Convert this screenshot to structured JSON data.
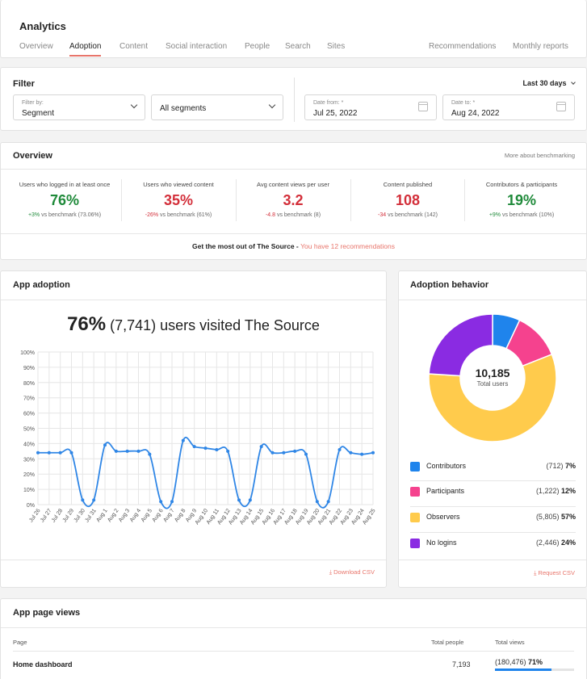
{
  "header": {
    "title": "Analytics",
    "tabs": [
      {
        "label": "Overview"
      },
      {
        "label": "Adoption"
      },
      {
        "label": "Content"
      },
      {
        "label": "Social interaction"
      },
      {
        "label": "People"
      },
      {
        "label": "Search"
      },
      {
        "label": "Sites"
      }
    ],
    "right_tabs": [
      {
        "label": "Recommendations"
      },
      {
        "label": "Monthly reports"
      }
    ]
  },
  "filter": {
    "title": "Filter",
    "range_label": "Last 30 days",
    "filter_by_label": "Filter by:",
    "filter_by_value": "Segment",
    "segments_value": "All segments",
    "date_from_label": "Date from: *",
    "date_from_value": "Jul 25, 2022",
    "date_to_label": "Date to: *",
    "date_to_value": "Aug 24, 2022"
  },
  "overview": {
    "title": "Overview",
    "benchmark_link": "More about benchmarking",
    "metrics": [
      {
        "label": "Users who logged in at least once",
        "value": "76%",
        "delta": "+3%",
        "bench": " vs benchmark (73.06%)",
        "trend": "pos"
      },
      {
        "label": "Users who viewed content",
        "value": "35%",
        "delta": "-26%",
        "bench": " vs benchmark (61%)",
        "trend": "neg"
      },
      {
        "label": "Avg content views per user",
        "value": "3.2",
        "delta": "-4.8",
        "bench": " vs benchmark (8)",
        "trend": "neg"
      },
      {
        "label": "Content published",
        "value": "108",
        "delta": "-34",
        "bench": " vs benchmark (142)",
        "trend": "neg"
      },
      {
        "label": "Contributors & participants",
        "value": "19%",
        "delta": "+9%",
        "bench": " vs benchmark (10%)",
        "trend": "pos"
      }
    ],
    "recommend_text": "Get the most out of The Source - ",
    "recommend_link": "You have 12 recommendations"
  },
  "app_adoption": {
    "title": "App adoption",
    "headline_pct": "76%",
    "headline_rest": " (7,741) users visited The Source",
    "download": "Download CSV"
  },
  "chart_data": {
    "type": "line",
    "x": [
      "Jul 26",
      "Jul 27",
      "Jul 28",
      "Jul 29",
      "Jul 30",
      "Jul 31",
      "Aug 1",
      "Aug 2",
      "Aug 3",
      "Aug 4",
      "Aug 5",
      "Aug 6",
      "Aug 7",
      "Aug 8",
      "Aug 9",
      "Aug 10",
      "Aug 11",
      "Aug 12",
      "Aug 13",
      "Aug 14",
      "Aug 15",
      "Aug 16",
      "Aug 17",
      "Aug 18",
      "Aug 19",
      "Aug 20",
      "Aug 21",
      "Aug 22",
      "Aug 23",
      "Aug 24",
      "Aug 25"
    ],
    "values": [
      34,
      34,
      34,
      34,
      3,
      3,
      39,
      35,
      35,
      35,
      33,
      2,
      2,
      42,
      38,
      37,
      36,
      35,
      3,
      3,
      38,
      34,
      34,
      35,
      33,
      2,
      2,
      36,
      34,
      33,
      34
    ],
    "yticks": [
      "0%",
      "10%",
      "20%",
      "30%",
      "40%",
      "50%",
      "60%",
      "70%",
      "80%",
      "90%",
      "100%"
    ],
    "ylim": [
      0,
      100
    ],
    "color": "#2f86e6",
    "grid": true
  },
  "adoption_behavior": {
    "title": "Adoption behavior",
    "total": "10,185",
    "total_label": "Total users",
    "segments": [
      {
        "name": "Contributors",
        "count": "(712)",
        "pct": "7%",
        "value": 7,
        "color": "#1f84ec"
      },
      {
        "name": "Participants",
        "count": "(1,222)",
        "pct": "12%",
        "value": 12,
        "color": "#f5428e"
      },
      {
        "name": "Observers",
        "count": "(5,805)",
        "pct": "57%",
        "value": 57,
        "color": "#ffcb4c"
      },
      {
        "name": "No logins",
        "count": "(2,446)",
        "pct": "24%",
        "value": 24,
        "color": "#8a2be2"
      }
    ],
    "request": "Request CSV"
  },
  "page_views": {
    "title": "App page views",
    "col_page": "Page",
    "col_people": "Total people",
    "col_views": "Total views",
    "rows": [
      {
        "page": "Home dashboard",
        "people": "7,193",
        "views": "(180,476)",
        "pct": "71%",
        "fraction": 0.71
      }
    ]
  }
}
